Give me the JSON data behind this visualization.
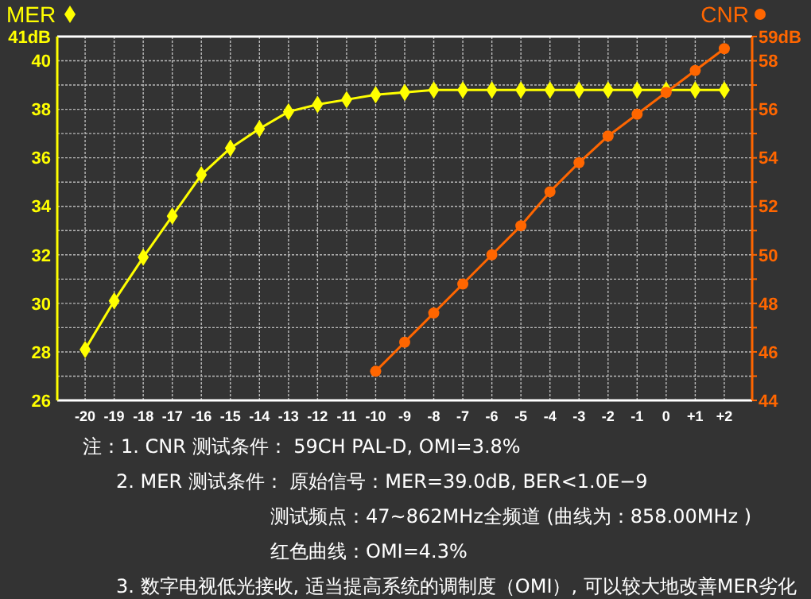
{
  "chart_data": {
    "type": "line",
    "categories": [
      "-20",
      "-19",
      "-18",
      "-17",
      "-16",
      "-15",
      "-14",
      "-13",
      "-12",
      "-11",
      "-10",
      "-9",
      "-8",
      "-7",
      "-6",
      "-5",
      "-4",
      "-3",
      "-2",
      "-1",
      "0",
      "+1",
      "+2"
    ],
    "series": [
      {
        "name": "MER",
        "color": "#ffff00",
        "marker": "diamond",
        "values": [
          28.1,
          30.1,
          31.9,
          33.6,
          35.3,
          36.4,
          37.2,
          37.9,
          38.2,
          38.4,
          38.6,
          38.7,
          38.8,
          38.8,
          38.8,
          38.8,
          38.8,
          38.8,
          38.8,
          38.8,
          38.8,
          38.8,
          38.8
        ]
      },
      {
        "name": "CNR",
        "color": "#ff6600",
        "marker": "circle",
        "axis": "y2",
        "values": [
          null,
          null,
          null,
          null,
          null,
          null,
          null,
          null,
          null,
          null,
          45.2,
          46.4,
          47.6,
          48.8,
          50.0,
          51.2,
          52.6,
          53.8,
          54.9,
          55.8,
          56.7,
          57.6,
          58.5
        ]
      }
    ],
    "ylim": [
      26,
      41
    ],
    "yticks": [
      26,
      {
        "value": 27,
        "label": null
      },
      28,
      {
        "value": 29,
        "label": null
      },
      30,
      {
        "value": 31,
        "label": null
      },
      32,
      {
        "value": 33,
        "label": null
      },
      34,
      {
        "value": 35,
        "label": null
      },
      36,
      {
        "value": 37,
        "label": null
      },
      38,
      {
        "value": 39,
        "label": null
      },
      40,
      {
        "value": 41,
        "label": "41dB"
      }
    ],
    "y2lim": [
      44,
      59
    ],
    "y2ticks": [
      44,
      {
        "value": 45,
        "label": null
      },
      46,
      {
        "value": 47,
        "label": null
      },
      48,
      {
        "value": 49,
        "label": null
      },
      50,
      {
        "value": 51,
        "label": null
      },
      52,
      {
        "value": 53,
        "label": null
      },
      54,
      {
        "value": 55,
        "label": null
      },
      56,
      {
        "value": 57,
        "label": null
      },
      58,
      {
        "value": 59,
        "label": "59dB"
      }
    ],
    "grid": true,
    "legend": "top",
    "annotations": [
      "注：1. CNR 测试条件：  59CH  PAL-D, OMI=3.8%",
      "2. MER 测试条件：  原始信号：MER=39.0dB, BER<1.0E−9",
      "测试频点：47~862MHz全频道 (曲线为：858.00MHz )",
      "红色曲线：OMI=4.3%",
      "3. 数字电视低光接收, 适当提高系统的调制度（OMI）, 可以较大地改善MER劣化"
    ]
  }
}
